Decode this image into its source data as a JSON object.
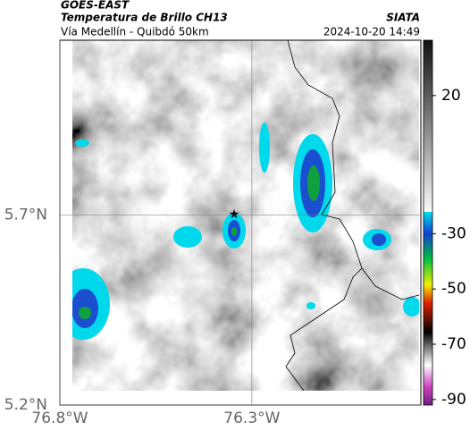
{
  "header": {
    "product": "GOES-EAST",
    "title": "Temperatura de Brillo CH13",
    "source": "SIATA",
    "subtitle": "Vía Medellín - Quibdó 50km",
    "timestamp": "2024-10-20 14:49"
  },
  "map": {
    "xlim": [
      -76.8,
      -75.86
    ],
    "ylim": [
      5.2,
      6.16
    ],
    "xticks": [
      {
        "value": -76.8,
        "label": "76.8°W"
      },
      {
        "value": -76.3,
        "label": "76.3°W"
      }
    ],
    "yticks": [
      {
        "value": 5.7,
        "label": "5.7°N"
      },
      {
        "value": 5.2,
        "label": "5.2°N"
      }
    ]
  },
  "colorbar": {
    "lim": [
      40,
      -92
    ],
    "ticks": [
      20,
      -30,
      -50,
      -70,
      -90
    ]
  }
}
